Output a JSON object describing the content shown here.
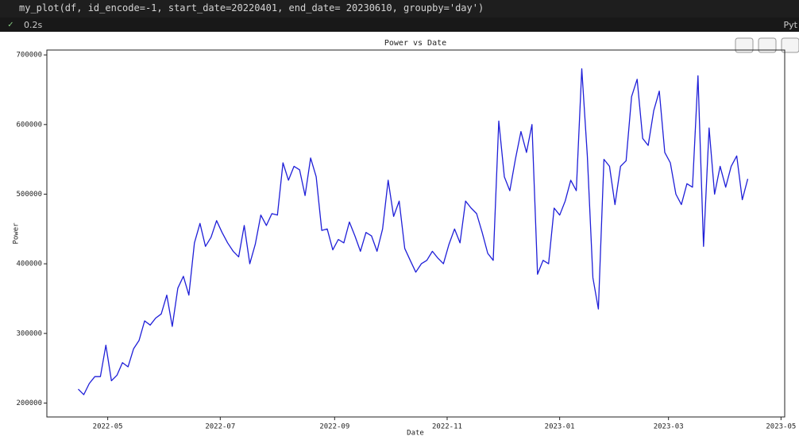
{
  "code": "my_plot(df, id_encode=-1, start_date=20220401, end_date= 20230610, groupby='day')",
  "status": {
    "time": "0.2s",
    "kernel": "Pyt"
  },
  "chart_data": {
    "type": "line",
    "title": "Power vs Date",
    "x_label": "Date",
    "y_label": "Power",
    "color": "#1f1fd8",
    "xlim": [
      "2022-03-29",
      "2023-05-03"
    ],
    "xticks": [
      {
        "value": "2022-05-01",
        "label": "2022-05"
      },
      {
        "value": "2022-07-01",
        "label": "2022-07"
      },
      {
        "value": "2022-09-01",
        "label": "2022-09"
      },
      {
        "value": "2022-11-01",
        "label": "2022-11"
      },
      {
        "value": "2023-01-01",
        "label": "2023-01"
      },
      {
        "value": "2023-03-01",
        "label": "2023-03"
      },
      {
        "value": "2023-05-01",
        "label": "2023-05"
      }
    ],
    "ylim": [
      180000,
      707000
    ],
    "yticks": [
      200000,
      300000,
      400000,
      500000,
      600000,
      700000
    ],
    "x": [
      "2022-04-15",
      "2022-04-18",
      "2022-04-21",
      "2022-04-24",
      "2022-04-27",
      "2022-04-30",
      "2022-05-03",
      "2022-05-06",
      "2022-05-09",
      "2022-05-12",
      "2022-05-15",
      "2022-05-18",
      "2022-05-21",
      "2022-05-24",
      "2022-05-27",
      "2022-05-30",
      "2022-06-02",
      "2022-06-05",
      "2022-06-08",
      "2022-06-11",
      "2022-06-14",
      "2022-06-17",
      "2022-06-20",
      "2022-06-23",
      "2022-06-26",
      "2022-06-29",
      "2022-07-02",
      "2022-07-05",
      "2022-07-08",
      "2022-07-11",
      "2022-07-14",
      "2022-07-17",
      "2022-07-20",
      "2022-07-23",
      "2022-07-26",
      "2022-07-29",
      "2022-08-01",
      "2022-08-04",
      "2022-08-07",
      "2022-08-10",
      "2022-08-13",
      "2022-08-16",
      "2022-08-19",
      "2022-08-22",
      "2022-08-25",
      "2022-08-28",
      "2022-08-31",
      "2022-09-03",
      "2022-09-06",
      "2022-09-09",
      "2022-09-12",
      "2022-09-15",
      "2022-09-18",
      "2022-09-21",
      "2022-09-24",
      "2022-09-27",
      "2022-09-30",
      "2022-10-03",
      "2022-10-06",
      "2022-10-09",
      "2022-10-12",
      "2022-10-15",
      "2022-10-18",
      "2022-10-21",
      "2022-10-24",
      "2022-10-27",
      "2022-10-30",
      "2022-11-02",
      "2022-11-05",
      "2022-11-08",
      "2022-11-11",
      "2022-11-14",
      "2022-11-17",
      "2022-11-20",
      "2022-11-23",
      "2022-11-26",
      "2022-11-29",
      "2022-12-02",
      "2022-12-05",
      "2022-12-08",
      "2022-12-11",
      "2022-12-14",
      "2022-12-17",
      "2022-12-20",
      "2022-12-23",
      "2022-12-26",
      "2022-12-29",
      "2023-01-01",
      "2023-01-04",
      "2023-01-07",
      "2023-01-10",
      "2023-01-13",
      "2023-01-16",
      "2023-01-19",
      "2023-01-22",
      "2023-01-25",
      "2023-01-28",
      "2023-01-31",
      "2023-02-03",
      "2023-02-06",
      "2023-02-09",
      "2023-02-12",
      "2023-02-15",
      "2023-02-18",
      "2023-02-21",
      "2023-02-24",
      "2023-02-27",
      "2023-03-02",
      "2023-03-05",
      "2023-03-08",
      "2023-03-11",
      "2023-03-14",
      "2023-03-17",
      "2023-03-20",
      "2023-03-23",
      "2023-03-26",
      "2023-03-29",
      "2023-04-01",
      "2023-04-04",
      "2023-04-07",
      "2023-04-10",
      "2023-04-13"
    ],
    "values": [
      220000,
      212000,
      228000,
      238000,
      238000,
      283000,
      232000,
      240000,
      258000,
      252000,
      278000,
      290000,
      318000,
      312000,
      322000,
      328000,
      355000,
      310000,
      365000,
      382000,
      355000,
      430000,
      458000,
      425000,
      438000,
      462000,
      445000,
      430000,
      418000,
      410000,
      455000,
      400000,
      428000,
      470000,
      455000,
      472000,
      470000,
      545000,
      520000,
      540000,
      535000,
      498000,
      552000,
      525000,
      448000,
      450000,
      420000,
      435000,
      430000,
      460000,
      440000,
      418000,
      445000,
      440000,
      418000,
      450000,
      520000,
      468000,
      490000,
      422000,
      405000,
      388000,
      400000,
      405000,
      418000,
      408000,
      400000,
      428000,
      450000,
      430000,
      490000,
      480000,
      472000,
      445000,
      415000,
      405000,
      605000,
      525000,
      505000,
      550000,
      590000,
      560000,
      600000,
      385000,
      405000,
      400000,
      480000,
      470000,
      490000,
      520000,
      505000,
      680000,
      555000,
      380000,
      335000,
      550000,
      540000,
      485000,
      540000,
      548000,
      640000,
      665000,
      580000,
      570000,
      620000,
      648000,
      560000,
      545000,
      500000,
      485000,
      515000,
      510000,
      670000,
      425000,
      595000,
      500000,
      540000,
      510000,
      540000,
      555000,
      492000,
      522000
    ]
  }
}
